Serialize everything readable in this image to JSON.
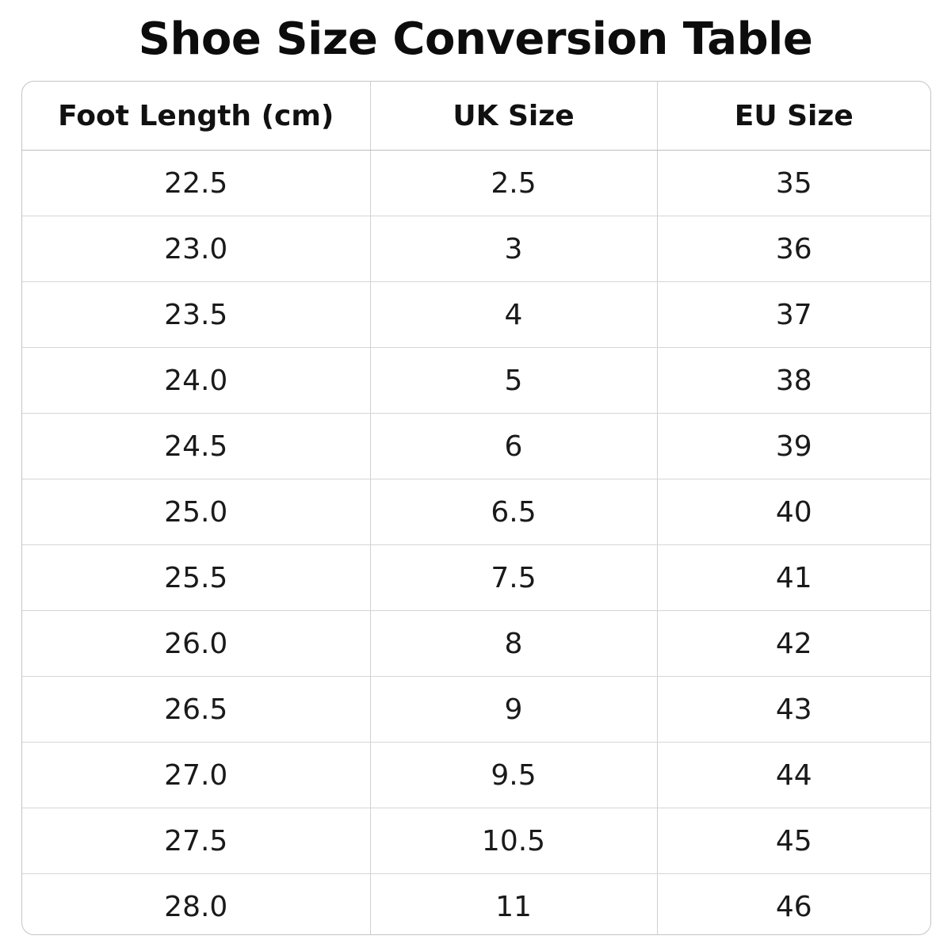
{
  "title": "Shoe Size Conversion Table",
  "table": {
    "columns": [
      "Foot Length (cm)",
      "UK Size",
      "EU Size"
    ],
    "rows": [
      [
        "22.5",
        "2.5",
        "35"
      ],
      [
        "23.0",
        "3",
        "36"
      ],
      [
        "23.5",
        "4",
        "37"
      ],
      [
        "24.0",
        "5",
        "38"
      ],
      [
        "24.5",
        "6",
        "39"
      ],
      [
        "25.0",
        "6.5",
        "40"
      ],
      [
        "25.5",
        "7.5",
        "41"
      ],
      [
        "26.0",
        "8",
        "42"
      ],
      [
        "26.5",
        "9",
        "43"
      ],
      [
        "27.0",
        "9.5",
        "44"
      ],
      [
        "27.5",
        "10.5",
        "45"
      ],
      [
        "28.0",
        "11",
        "46"
      ]
    ]
  }
}
